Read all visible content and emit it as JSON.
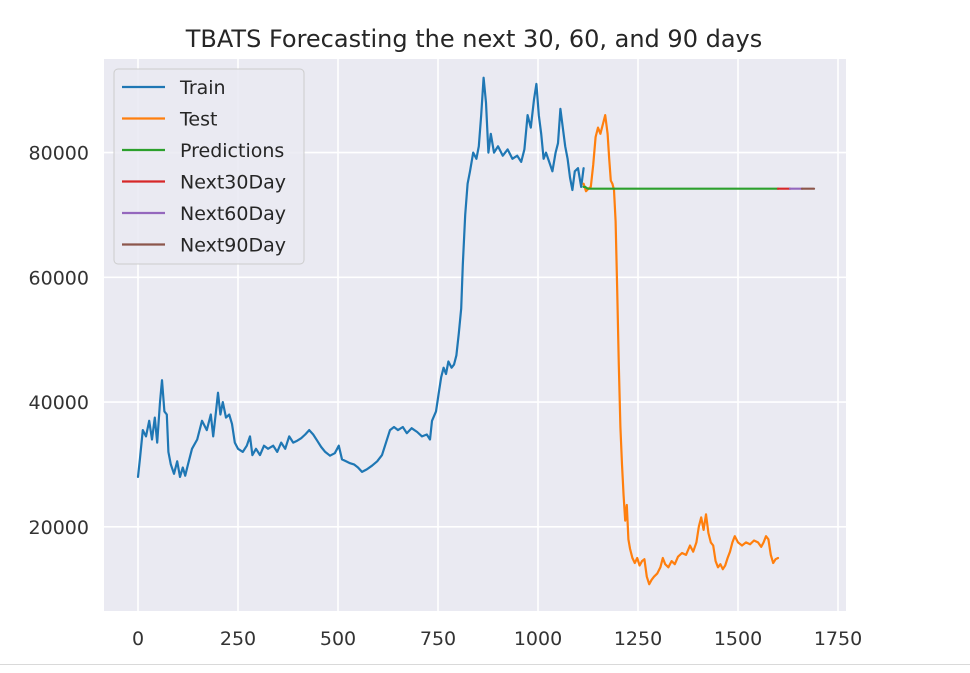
{
  "chart_data": {
    "type": "line",
    "title": "TBATS Forecasting the next 30, 60, and 90 days",
    "xlabel": "",
    "ylabel": "",
    "xlim": [
      -85,
      1770
    ],
    "ylim": [
      6500,
      95000
    ],
    "xticks": [
      0,
      250,
      500,
      750,
      1000,
      1250,
      1500,
      1750
    ],
    "yticks": [
      20000,
      40000,
      60000,
      80000
    ],
    "grid": true,
    "legend_position": "top-left",
    "background_color": "#eaeaf2",
    "series": [
      {
        "name": "Train",
        "color": "#1f77b4",
        "points": [
          [
            0,
            28000
          ],
          [
            5,
            31000
          ],
          [
            12,
            35500
          ],
          [
            20,
            34500
          ],
          [
            28,
            37000
          ],
          [
            35,
            34000
          ],
          [
            42,
            37500
          ],
          [
            48,
            33500
          ],
          [
            55,
            40000
          ],
          [
            60,
            43500
          ],
          [
            66,
            38500
          ],
          [
            72,
            38000
          ],
          [
            76,
            32000
          ],
          [
            82,
            30000
          ],
          [
            90,
            28500
          ],
          [
            98,
            30500
          ],
          [
            105,
            28000
          ],
          [
            112,
            29500
          ],
          [
            118,
            28200
          ],
          [
            125,
            30000
          ],
          [
            135,
            32500
          ],
          [
            148,
            34000
          ],
          [
            160,
            37000
          ],
          [
            172,
            35500
          ],
          [
            182,
            38000
          ],
          [
            188,
            34500
          ],
          [
            195,
            38500
          ],
          [
            200,
            41500
          ],
          [
            206,
            38000
          ],
          [
            212,
            40000
          ],
          [
            220,
            37500
          ],
          [
            228,
            38000
          ],
          [
            235,
            36500
          ],
          [
            242,
            33500
          ],
          [
            250,
            32500
          ],
          [
            262,
            32000
          ],
          [
            272,
            33000
          ],
          [
            280,
            34500
          ],
          [
            286,
            31500
          ],
          [
            295,
            32500
          ],
          [
            305,
            31500
          ],
          [
            315,
            33000
          ],
          [
            325,
            32500
          ],
          [
            338,
            33000
          ],
          [
            348,
            32000
          ],
          [
            358,
            33500
          ],
          [
            368,
            32500
          ],
          [
            378,
            34500
          ],
          [
            388,
            33500
          ],
          [
            398,
            33800
          ],
          [
            408,
            34200
          ],
          [
            418,
            34800
          ],
          [
            428,
            35500
          ],
          [
            438,
            34800
          ],
          [
            448,
            33800
          ],
          [
            458,
            32800
          ],
          [
            468,
            32000
          ],
          [
            480,
            31400
          ],
          [
            492,
            31800
          ],
          [
            502,
            33000
          ],
          [
            510,
            30800
          ],
          [
            520,
            30500
          ],
          [
            530,
            30200
          ],
          [
            540,
            30000
          ],
          [
            550,
            29500
          ],
          [
            560,
            28800
          ],
          [
            572,
            29200
          ],
          [
            585,
            29800
          ],
          [
            598,
            30500
          ],
          [
            610,
            31500
          ],
          [
            620,
            33500
          ],
          [
            630,
            35500
          ],
          [
            640,
            36000
          ],
          [
            650,
            35500
          ],
          [
            662,
            36000
          ],
          [
            672,
            35000
          ],
          [
            684,
            35800
          ],
          [
            698,
            35200
          ],
          [
            710,
            34500
          ],
          [
            722,
            34800
          ],
          [
            730,
            34000
          ],
          [
            735,
            37000
          ],
          [
            745,
            38500
          ],
          [
            752,
            41500
          ],
          [
            758,
            44000
          ],
          [
            764,
            45500
          ],
          [
            770,
            44500
          ],
          [
            776,
            46500
          ],
          [
            784,
            45500
          ],
          [
            790,
            46000
          ],
          [
            796,
            47500
          ],
          [
            802,
            51000
          ],
          [
            808,
            55000
          ],
          [
            812,
            62000
          ],
          [
            818,
            70000
          ],
          [
            824,
            75000
          ],
          [
            830,
            77000
          ],
          [
            838,
            80000
          ],
          [
            846,
            79000
          ],
          [
            852,
            81000
          ],
          [
            858,
            86000
          ],
          [
            864,
            92000
          ],
          [
            870,
            88000
          ],
          [
            876,
            80000
          ],
          [
            882,
            83000
          ],
          [
            890,
            80000
          ],
          [
            900,
            81000
          ],
          [
            912,
            79500
          ],
          [
            924,
            80500
          ],
          [
            936,
            79000
          ],
          [
            948,
            79500
          ],
          [
            958,
            78500
          ],
          [
            966,
            80500
          ],
          [
            974,
            86000
          ],
          [
            982,
            84000
          ],
          [
            990,
            88500
          ],
          [
            996,
            91000
          ],
          [
            1002,
            86000
          ],
          [
            1008,
            83000
          ],
          [
            1014,
            79000
          ],
          [
            1020,
            80000
          ],
          [
            1028,
            78500
          ],
          [
            1036,
            77000
          ],
          [
            1044,
            80000
          ],
          [
            1050,
            81500
          ],
          [
            1056,
            87000
          ],
          [
            1062,
            84000
          ],
          [
            1068,
            81000
          ],
          [
            1074,
            79000
          ],
          [
            1080,
            76000
          ],
          [
            1086,
            74000
          ],
          [
            1092,
            77000
          ],
          [
            1100,
            77500
          ],
          [
            1108,
            74500
          ],
          [
            1114,
            77500
          ]
        ]
      },
      {
        "name": "Test",
        "color": "#ff7f0e",
        "points": [
          [
            1114,
            75000
          ],
          [
            1120,
            73800
          ],
          [
            1126,
            74200
          ],
          [
            1132,
            74500
          ],
          [
            1138,
            78000
          ],
          [
            1144,
            82500
          ],
          [
            1150,
            84000
          ],
          [
            1156,
            83000
          ],
          [
            1162,
            84500
          ],
          [
            1168,
            86000
          ],
          [
            1174,
            83000
          ],
          [
            1178,
            79000
          ],
          [
            1182,
            75500
          ],
          [
            1186,
            75000
          ],
          [
            1190,
            74000
          ],
          [
            1194,
            69000
          ],
          [
            1198,
            58000
          ],
          [
            1202,
            46000
          ],
          [
            1206,
            36000
          ],
          [
            1210,
            30000
          ],
          [
            1214,
            25000
          ],
          [
            1218,
            21000
          ],
          [
            1222,
            23500
          ],
          [
            1226,
            18000
          ],
          [
            1230,
            16500
          ],
          [
            1236,
            15000
          ],
          [
            1242,
            14200
          ],
          [
            1248,
            15000
          ],
          [
            1254,
            13800
          ],
          [
            1260,
            14500
          ],
          [
            1266,
            14800
          ],
          [
            1272,
            12000
          ],
          [
            1278,
            10800
          ],
          [
            1284,
            11500
          ],
          [
            1290,
            12000
          ],
          [
            1298,
            12500
          ],
          [
            1306,
            13500
          ],
          [
            1312,
            15000
          ],
          [
            1318,
            14000
          ],
          [
            1326,
            13500
          ],
          [
            1334,
            14500
          ],
          [
            1342,
            14000
          ],
          [
            1350,
            15200
          ],
          [
            1360,
            15800
          ],
          [
            1370,
            15500
          ],
          [
            1380,
            17000
          ],
          [
            1388,
            16000
          ],
          [
            1396,
            17500
          ],
          [
            1402,
            20000
          ],
          [
            1408,
            21500
          ],
          [
            1414,
            19500
          ],
          [
            1420,
            22000
          ],
          [
            1426,
            19000
          ],
          [
            1432,
            17500
          ],
          [
            1438,
            17000
          ],
          [
            1444,
            14500
          ],
          [
            1450,
            13500
          ],
          [
            1456,
            14000
          ],
          [
            1462,
            13200
          ],
          [
            1468,
            13800
          ],
          [
            1474,
            15000
          ],
          [
            1480,
            16000
          ],
          [
            1486,
            17500
          ],
          [
            1492,
            18500
          ],
          [
            1500,
            17500
          ],
          [
            1510,
            17000
          ],
          [
            1520,
            17500
          ],
          [
            1530,
            17200
          ],
          [
            1540,
            17800
          ],
          [
            1550,
            17500
          ],
          [
            1558,
            16800
          ],
          [
            1564,
            17500
          ],
          [
            1570,
            18500
          ],
          [
            1576,
            18000
          ],
          [
            1582,
            15500
          ],
          [
            1588,
            14200
          ],
          [
            1594,
            14800
          ],
          [
            1600,
            15000
          ]
        ]
      },
      {
        "name": "Predictions",
        "color": "#2ca02c",
        "points": [
          [
            1114,
            74500
          ],
          [
            1118,
            74500
          ],
          [
            1122,
            74300
          ],
          [
            1126,
            74200
          ],
          [
            1600,
            74200
          ]
        ]
      },
      {
        "name": "Next30Day",
        "color": "#d62728",
        "points": [
          [
            1600,
            74200
          ],
          [
            1630,
            74200
          ]
        ]
      },
      {
        "name": "Next60Day",
        "color": "#9467bd",
        "points": [
          [
            1630,
            74200
          ],
          [
            1660,
            74200
          ]
        ]
      },
      {
        "name": "Next90Day",
        "color": "#8c564b",
        "points": [
          [
            1660,
            74200
          ],
          [
            1690,
            74200
          ]
        ]
      }
    ]
  }
}
